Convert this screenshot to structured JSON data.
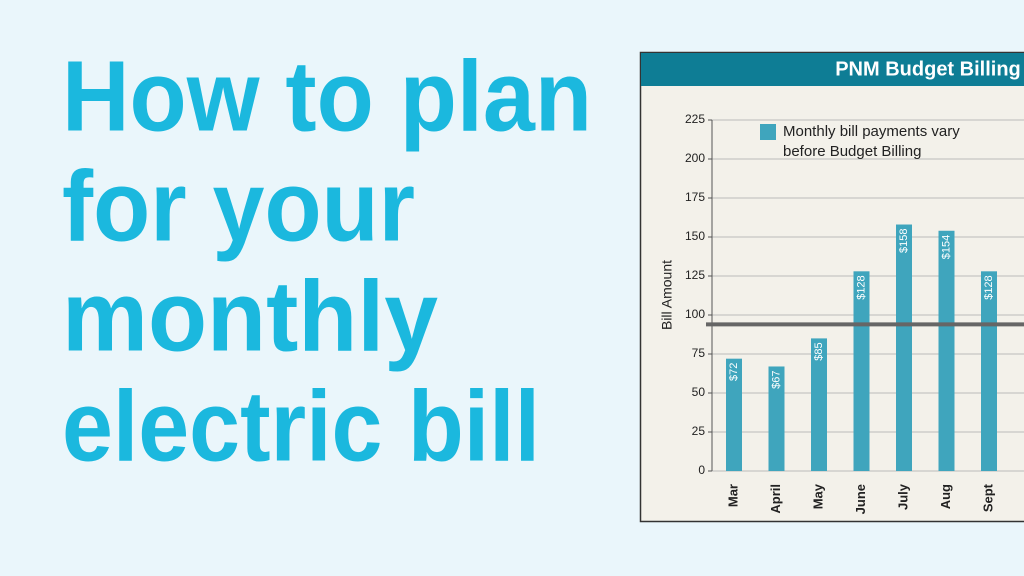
{
  "headline_lines": [
    "How to plan",
    "for your",
    "monthly",
    "electric bill"
  ],
  "chart_data": {
    "type": "bar",
    "title": "PNM Budget Billing",
    "y_label": "Bill Amount",
    "categories": [
      "Mar",
      "April",
      "May",
      "June",
      "July",
      "Aug",
      "Sept"
    ],
    "series": [
      {
        "name": "Monthly bill payments vary before Budget Billing",
        "color": "#3fa5bd",
        "values": [
          72,
          67,
          85,
          128,
          158,
          154,
          128
        ],
        "value_labels": [
          "$72",
          "$67",
          "$85",
          "$128",
          "$158",
          "$154",
          "$128"
        ]
      }
    ],
    "budget_line": 94,
    "ylim": [
      0,
      225
    ],
    "yticks": [
      0,
      25,
      50,
      75,
      100,
      125,
      150,
      175,
      200,
      225
    ],
    "grid": true
  }
}
